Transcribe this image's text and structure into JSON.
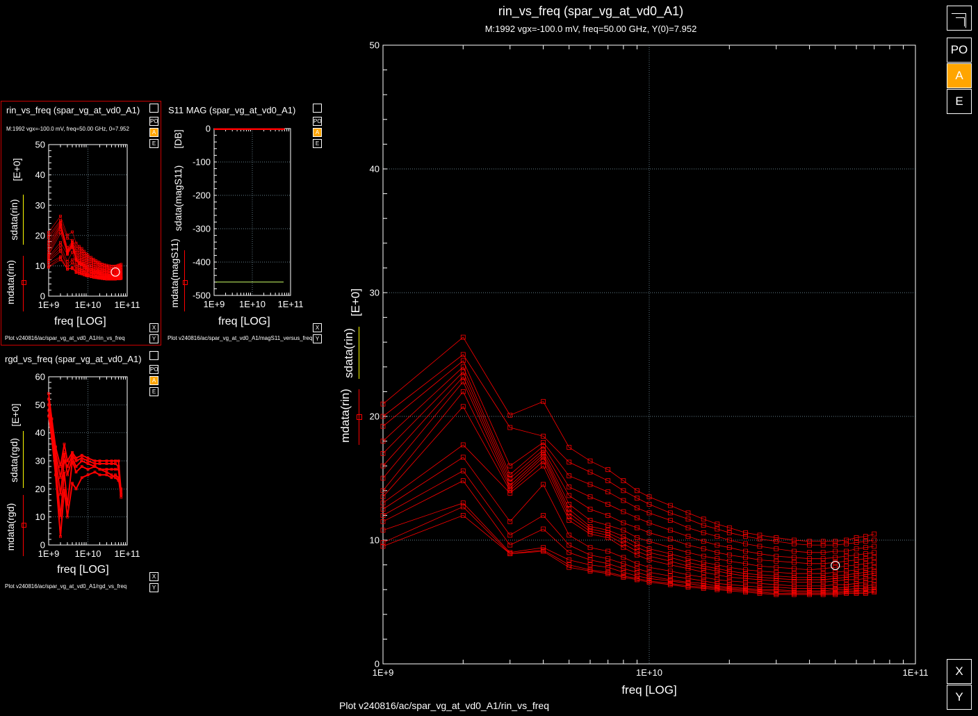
{
  "colors": {
    "background": "#000000",
    "series": "#ff0000",
    "grid": "#ffffff",
    "accent": "#ffa500",
    "marker": "#ffffff"
  },
  "main_plot": {
    "title": "rin_vs_freq (spar_vg_at_vd0_A1)",
    "subtitle": "M:1992 vgx=-100.0  mV, freq=50.00  GHz, Y(0)=7.952",
    "xlabel": "freq  [LOG]",
    "ylabel_sdata": "sdata(rin)",
    "ylabel_mdata": "mdata(rin)",
    "yunit": "[E+0]",
    "footer": "Plot v240816/ac/spar_vg_at_vd0_A1/rin_vs_freq",
    "buttons": [
      "PO",
      "A",
      "E"
    ],
    "axis_buttons": [
      "X",
      "Y"
    ]
  },
  "small_rin": {
    "title": "rin_vs_freq (spar_vg_at_vd0_A1)",
    "subtitle": "M:1992 vgx=-100.0  mV, freq=50.00  GHz, 0=7.952",
    "xlabel": "freq  [LOG]",
    "ylabel_sdata": "sdata(rin)",
    "ylabel_mdata": "mdata(rin)",
    "yunit": "[E+0]",
    "footer": "Plot v240816/ac/spar_vg_at_vd0_A1/rin_vs_freq",
    "buttons": [
      "PO",
      "A",
      "E"
    ],
    "axis_buttons": [
      "X",
      "Y"
    ]
  },
  "small_s11": {
    "title": "S11 MAG (spar_vg_at_vd0_A1)",
    "xlabel": "freq  [LOG]",
    "ylabel_sdata": "sdata(magS11)",
    "ylabel_mdata": "mdata(magS11)",
    "yunit": "[DB]",
    "footer": "Plot v240816/ac/spar_vg_at_vd0_A1/magS11_versus_freq",
    "buttons": [
      "PO",
      "A",
      "E"
    ],
    "axis_buttons": [
      "X",
      "Y"
    ]
  },
  "small_rgd": {
    "title": "rgd_vs_freq (spar_vg_at_vd0_A1)",
    "xlabel": "freq  [LOG]",
    "ylabel_sdata": "sdata(rgd)",
    "ylabel_mdata": "mdata(rgd)",
    "yunit": "[E+0]",
    "footer": "Plot v240816/ac/spar_vg_at_vd0_A1/rgd_vs_freq",
    "buttons": [
      "PO",
      "A",
      "E"
    ],
    "axis_buttons": [
      "X",
      "Y"
    ]
  },
  "chart_data": [
    {
      "id": "main_rin",
      "type": "line",
      "log_x": true,
      "xlim": [
        1000000000.0,
        100000000000.0
      ],
      "ylim": [
        0,
        50
      ],
      "xticks": [
        {
          "v": 1000000000.0,
          "label": "1E+9"
        },
        {
          "v": 10000000000.0,
          "label": "1E+10"
        },
        {
          "v": 100000000000.0,
          "label": "1E+11"
        }
      ],
      "yticks": [
        {
          "v": 0,
          "label": "0"
        },
        {
          "v": 10,
          "label": "10"
        },
        {
          "v": 20,
          "label": "20"
        },
        {
          "v": 30,
          "label": "30"
        },
        {
          "v": 40,
          "label": "40"
        },
        {
          "v": 50,
          "label": "50"
        }
      ],
      "grid": true,
      "x": [
        1000000000.0,
        2000000000.0,
        3000000000.0,
        4000000000.0,
        5000000000.0,
        6000000000.0,
        7000000000.0,
        8000000000.0,
        9000000000.0,
        10000000000.0,
        12000000000.0,
        14000000000.0,
        16000000000.0,
        18000000000.0,
        20000000000.0,
        23000000000.0,
        26000000000.0,
        30000000000.0,
        35000000000.0,
        40000000000.0,
        45000000000.0,
        50000000000.0,
        55000000000.0,
        60000000000.0,
        65000000000.0,
        70000000000.0
      ],
      "series": [
        {
          "values": [
            21.0,
            26.4,
            20.1,
            21.2,
            17.5,
            16.4,
            15.7,
            14.8,
            14.0,
            13.5,
            12.8,
            12.2,
            11.7,
            11.3,
            11.0,
            10.6,
            10.4,
            10.2,
            10.0,
            9.9,
            9.9,
            9.9,
            10.0,
            10.2,
            10.3,
            10.5
          ]
        },
        {
          "values": [
            20.0,
            25.0,
            19.1,
            18.4,
            16.3,
            15.5,
            14.8,
            14.0,
            13.4,
            12.9,
            12.2,
            11.7,
            11.2,
            10.9,
            10.6,
            10.3,
            10.1,
            9.9,
            9.7,
            9.6,
            9.6,
            9.6,
            9.7,
            9.8,
            9.9,
            10.0
          ]
        },
        {
          "values": [
            19.2,
            24.5,
            16.0,
            17.9,
            15.2,
            14.5,
            13.9,
            13.2,
            12.6,
            12.2,
            11.6,
            11.0,
            10.6,
            10.3,
            10.0,
            9.7,
            9.5,
            9.3,
            9.1,
            9.0,
            9.0,
            9.1,
            9.1,
            9.3,
            9.4,
            9.5
          ]
        },
        {
          "values": [
            18.0,
            24.0,
            15.3,
            17.6,
            14.3,
            13.5,
            12.9,
            12.3,
            11.8,
            11.4,
            10.8,
            10.3,
            9.9,
            9.6,
            9.4,
            9.1,
            8.9,
            8.7,
            8.6,
            8.5,
            8.5,
            8.6,
            8.7,
            8.8,
            8.9,
            9.0
          ]
        },
        {
          "values": [
            17.0,
            23.6,
            15.0,
            17.3,
            13.6,
            12.5,
            12.0,
            11.4,
            11.0,
            10.6,
            10.1,
            9.6,
            9.3,
            9.0,
            8.8,
            8.6,
            8.4,
            8.3,
            8.2,
            8.1,
            8.1,
            8.2,
            8.3,
            8.4,
            8.5,
            8.6
          ]
        },
        {
          "values": [
            16.0,
            23.2,
            14.7,
            17.1,
            12.9,
            11.6,
            11.2,
            10.8,
            10.2,
            9.9,
            9.4,
            9.0,
            8.7,
            8.5,
            8.3,
            8.1,
            7.9,
            7.8,
            7.7,
            7.6,
            7.7,
            7.8,
            7.9,
            8.0,
            8.1,
            8.2
          ]
        },
        {
          "values": [
            15.0,
            22.8,
            14.4,
            16.9,
            12.5,
            11.1,
            10.8,
            10.3,
            9.7,
            9.3,
            8.9,
            8.5,
            8.2,
            8.0,
            7.8,
            7.6,
            7.5,
            7.4,
            7.3,
            7.3,
            7.3,
            7.4,
            7.5,
            7.6,
            7.7,
            7.8
          ]
        },
        {
          "values": [
            14.0,
            22.0,
            14.2,
            16.7,
            12.2,
            10.9,
            10.6,
            10.0,
            9.4,
            9.0,
            8.6,
            8.2,
            7.9,
            7.7,
            7.5,
            7.3,
            7.2,
            7.1,
            7.0,
            7.0,
            7.0,
            7.1,
            7.2,
            7.3,
            7.4,
            7.5
          ]
        },
        {
          "values": [
            13.5,
            20.8,
            14.0,
            16.4,
            11.9,
            10.7,
            10.4,
            9.7,
            9.1,
            8.7,
            8.3,
            7.9,
            7.7,
            7.5,
            7.3,
            7.1,
            7.0,
            6.9,
            6.8,
            6.8,
            6.8,
            6.9,
            7.0,
            7.1,
            7.2,
            7.3
          ]
        },
        {
          "values": [
            13.0,
            17.7,
            13.8,
            16.0,
            11.6,
            10.5,
            10.2,
            9.4,
            8.8,
            8.4,
            8.0,
            7.7,
            7.4,
            7.2,
            7.0,
            6.9,
            6.8,
            6.7,
            6.6,
            6.6,
            6.6,
            6.7,
            6.8,
            6.8,
            6.9,
            7.0
          ]
        },
        {
          "values": [
            12.5,
            16.7,
            11.5,
            14.5,
            10.4,
            9.4,
            9.1,
            8.6,
            8.1,
            7.8,
            7.5,
            7.2,
            7.0,
            6.8,
            6.7,
            6.6,
            6.5,
            6.4,
            6.3,
            6.3,
            6.3,
            6.4,
            6.4,
            6.5,
            6.6,
            6.7
          ]
        },
        {
          "values": [
            12.0,
            15.6,
            10.4,
            12.0,
            9.6,
            8.8,
            8.5,
            8.1,
            7.7,
            7.4,
            7.1,
            6.9,
            6.7,
            6.5,
            6.4,
            6.3,
            6.2,
            6.2,
            6.1,
            6.1,
            6.1,
            6.1,
            6.2,
            6.3,
            6.3,
            6.4
          ]
        },
        {
          "values": [
            11.5,
            14.8,
            9.6,
            10.9,
            9.0,
            8.4,
            8.1,
            7.7,
            7.4,
            7.1,
            6.8,
            6.6,
            6.5,
            6.3,
            6.2,
            6.1,
            6.0,
            6.0,
            5.9,
            5.9,
            5.9,
            6.0,
            6.0,
            6.1,
            6.1,
            6.2
          ]
        },
        {
          "values": [
            10.8,
            13.0,
            9.0,
            9.4,
            8.4,
            8.0,
            7.8,
            7.4,
            7.1,
            6.9,
            6.7,
            6.5,
            6.3,
            6.2,
            6.1,
            6.0,
            5.9,
            5.9,
            5.8,
            5.8,
            5.8,
            5.8,
            5.9,
            5.9,
            6.0,
            6.0
          ]
        },
        {
          "values": [
            9.8,
            12.7,
            8.9,
            9.2,
            8.0,
            7.6,
            7.4,
            7.1,
            6.9,
            6.7,
            6.5,
            6.3,
            6.2,
            6.1,
            6.0,
            5.9,
            5.8,
            5.7,
            5.7,
            5.7,
            5.7,
            5.7,
            5.8,
            5.8,
            5.8,
            5.9
          ]
        },
        {
          "values": [
            9.5,
            12.0,
            8.9,
            9.1,
            7.8,
            7.5,
            7.3,
            7.0,
            6.8,
            6.6,
            6.4,
            6.2,
            6.1,
            6.0,
            5.9,
            5.8,
            5.7,
            5.6,
            5.6,
            5.6,
            5.6,
            5.6,
            5.7,
            5.7,
            5.7,
            5.8
          ]
        }
      ],
      "marker": {
        "x": 50000000000.0,
        "y": 7.952
      }
    },
    {
      "id": "small_rin",
      "type": "line",
      "log_x": true,
      "xlim": [
        1000000000.0,
        100000000000.0
      ],
      "ylim": [
        0,
        50
      ],
      "xticks": [
        {
          "v": 1000000000.0,
          "label": "1E+9"
        },
        {
          "v": 10000000000.0,
          "label": "1E+10"
        },
        {
          "v": 100000000000.0,
          "label": "1E+11"
        }
      ],
      "yticks": [
        {
          "v": 0,
          "label": "0"
        },
        {
          "v": 10,
          "label": "10"
        },
        {
          "v": 20,
          "label": "20"
        },
        {
          "v": 30,
          "label": "30"
        },
        {
          "v": 40,
          "label": "40"
        },
        {
          "v": 50,
          "label": "50"
        }
      ],
      "grid": true,
      "same_as": "main_rin",
      "marker": {
        "x": 50000000000.0,
        "y": 7.952
      }
    },
    {
      "id": "small_s11",
      "type": "line",
      "log_x": true,
      "xlim": [
        1000000000.0,
        100000000000.0
      ],
      "ylim": [
        -500,
        0
      ],
      "xticks": [
        {
          "v": 1000000000.0,
          "label": "1E+9"
        },
        {
          "v": 10000000000.0,
          "label": "1E+10"
        },
        {
          "v": 100000000000.0,
          "label": "1E+11"
        }
      ],
      "yticks": [
        {
          "v": -500,
          "label": "-500"
        },
        {
          "v": -400,
          "label": "-400"
        },
        {
          "v": -300,
          "label": "-300"
        },
        {
          "v": -200,
          "label": "-200"
        },
        {
          "v": -100,
          "label": "-100"
        },
        {
          "v": 0,
          "label": "0"
        }
      ],
      "grid": true,
      "x": [
        1000000000.0,
        2000000000.0,
        5000000000.0,
        10000000000.0,
        20000000000.0,
        50000000000.0,
        70000000000.0
      ],
      "series": [
        {
          "values": [
            -1,
            -1,
            -1,
            -1,
            -1,
            -1,
            -1
          ]
        },
        {
          "values": [
            -2,
            -2,
            -2,
            -2,
            -2,
            -2,
            -2
          ]
        }
      ],
      "hline": -460
    },
    {
      "id": "small_rgd",
      "type": "line",
      "log_x": true,
      "xlim": [
        1000000000.0,
        100000000000.0
      ],
      "ylim": [
        0,
        60
      ],
      "xticks": [
        {
          "v": 1000000000.0,
          "label": "1E+9"
        },
        {
          "v": 10000000000.0,
          "label": "1E+10"
        },
        {
          "v": 100000000000.0,
          "label": "1E+11"
        }
      ],
      "yticks": [
        {
          "v": 0,
          "label": "0"
        },
        {
          "v": 10,
          "label": "10"
        },
        {
          "v": 20,
          "label": "20"
        },
        {
          "v": 30,
          "label": "30"
        },
        {
          "v": 40,
          "label": "40"
        },
        {
          "v": 50,
          "label": "50"
        },
        {
          "v": 60,
          "label": "60"
        }
      ],
      "grid": true,
      "x": [
        1000000000.0,
        1200000000.0,
        1500000000.0,
        2000000000.0,
        2500000000.0,
        3000000000.0,
        4000000000.0,
        5000000000.0,
        7000000000.0,
        10000000000.0,
        15000000000.0,
        20000000000.0,
        30000000000.0,
        40000000000.0,
        50000000000.0,
        60000000000.0,
        70000000000.0
      ],
      "series": [
        {
          "values": [
            54,
            45,
            35,
            28,
            36,
            30,
            33,
            31,
            32,
            31,
            30,
            30,
            30,
            30,
            30,
            30,
            19
          ]
        },
        {
          "values": [
            50,
            42,
            31,
            18,
            30,
            28,
            32,
            30,
            31,
            30,
            29,
            29,
            29,
            29,
            29,
            28,
            18
          ]
        },
        {
          "values": [
            48,
            40,
            28,
            10,
            26,
            14,
            30,
            26,
            28,
            27,
            28,
            27,
            27,
            27,
            27,
            27,
            18
          ]
        },
        {
          "values": [
            46,
            38,
            25,
            3,
            20,
            10,
            22,
            20,
            24,
            25,
            26,
            25,
            25,
            24,
            25,
            24,
            17
          ]
        },
        {
          "values": [
            52,
            43,
            33,
            24,
            33,
            25,
            31,
            28,
            30,
            29,
            28,
            27,
            26,
            25,
            24,
            23,
            20
          ]
        }
      ]
    }
  ]
}
